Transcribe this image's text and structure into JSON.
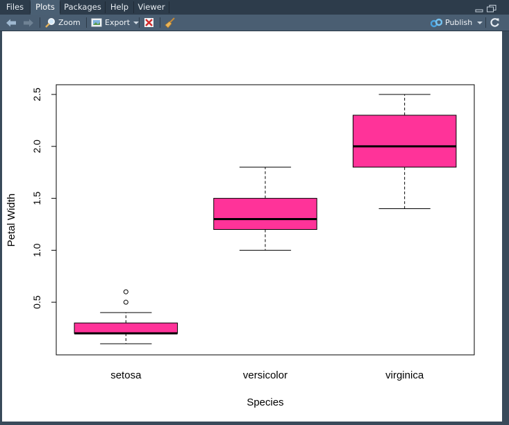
{
  "tabs": [
    {
      "label": "Files",
      "active": false
    },
    {
      "label": "Plots",
      "active": true
    },
    {
      "label": "Packages",
      "active": false
    },
    {
      "label": "Help",
      "active": false
    },
    {
      "label": "Viewer",
      "active": false
    }
  ],
  "toolbar": {
    "zoom_label": "Zoom",
    "export_label": "Export",
    "publish_label": "Publish"
  },
  "icons": {
    "back": "arrow-left-icon",
    "forward": "arrow-right-icon",
    "zoom": "magnifier-icon",
    "export": "export-image-icon",
    "remove": "remove-plot-icon",
    "clear": "broom-icon",
    "publish": "publish-icon",
    "refresh": "refresh-icon",
    "minimize": "minimize-icon",
    "maximize": "maximize-icon"
  },
  "colors": {
    "box_fill": "#ff3399",
    "tab_active": "#4a5f73",
    "toolbar": "#4a5e72",
    "frame": "#394a5a"
  },
  "chart_data": {
    "type": "boxplot",
    "xlabel": "Species",
    "ylabel": "Petal Width",
    "categories": [
      "setosa",
      "versicolor",
      "virginica"
    ],
    "yticks": [
      "0.5",
      "1.0",
      "1.5",
      "2.0",
      "2.5"
    ],
    "ylim": [
      0.1,
      2.5
    ],
    "boxes": [
      {
        "name": "setosa",
        "min": 0.1,
        "q1": 0.2,
        "median": 0.2,
        "q3": 0.3,
        "max": 0.4,
        "outliers": [
          0.5,
          0.6
        ]
      },
      {
        "name": "versicolor",
        "min": 1.0,
        "q1": 1.2,
        "median": 1.3,
        "q3": 1.5,
        "max": 1.8,
        "outliers": []
      },
      {
        "name": "virginica",
        "min": 1.4,
        "q1": 1.8,
        "median": 2.0,
        "q3": 2.3,
        "max": 2.5,
        "outliers": []
      }
    ],
    "fill_color": "#ff3399",
    "grid": false
  }
}
